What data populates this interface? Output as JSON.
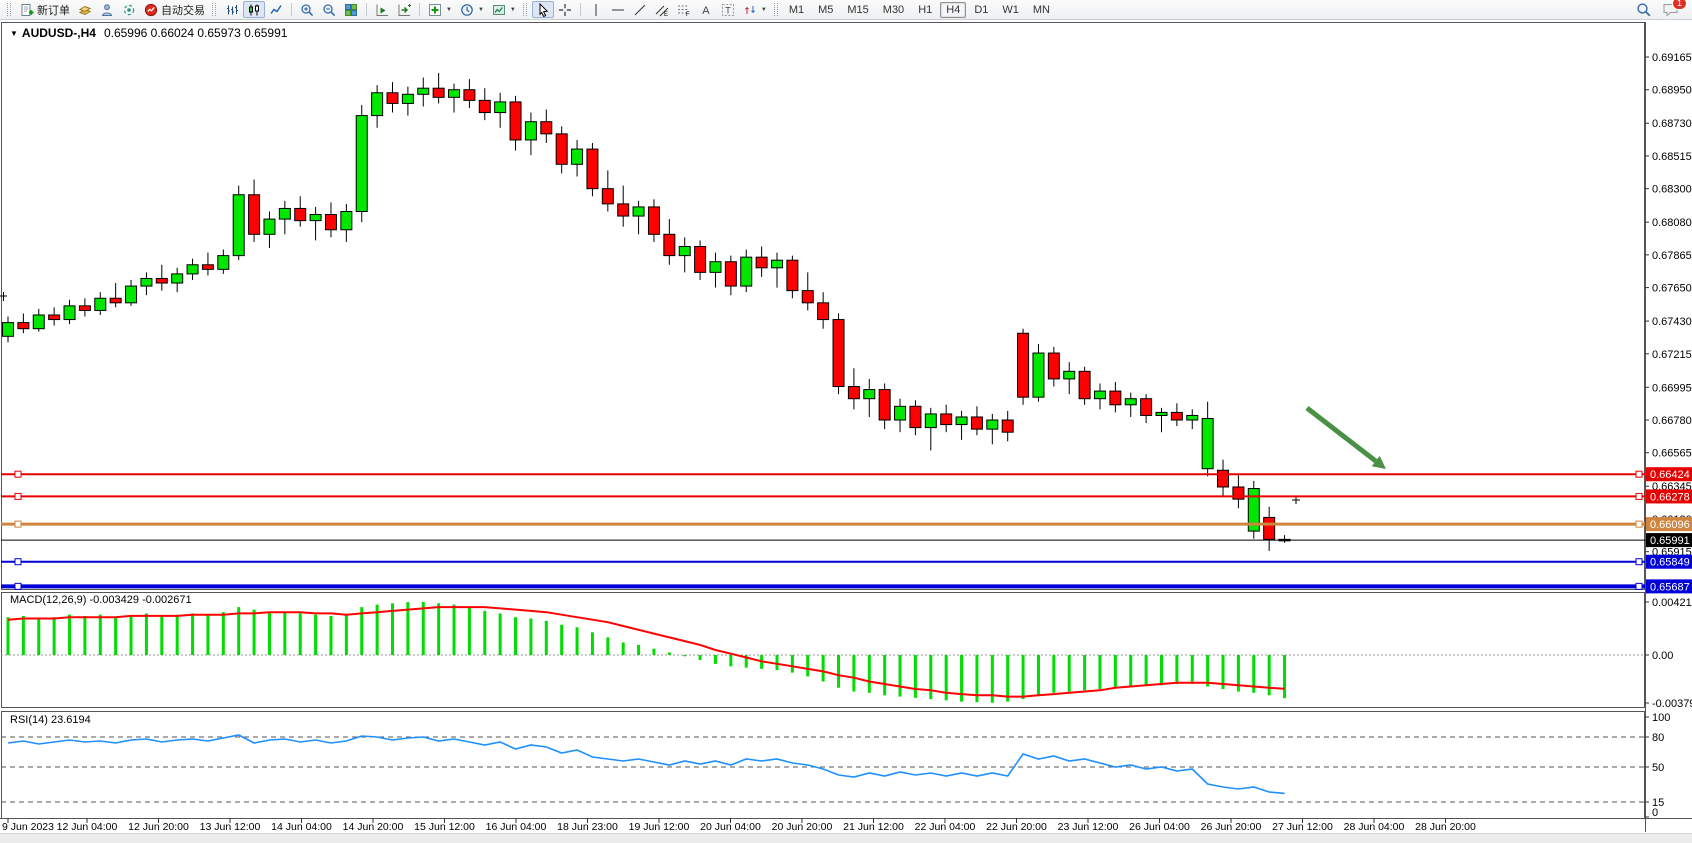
{
  "toolbar": {
    "new_order_label": "新订单",
    "autotrade_label": "自动交易",
    "timeframes": [
      "M1",
      "M5",
      "M15",
      "M30",
      "H1",
      "H4",
      "D1",
      "W1",
      "MN"
    ],
    "active_timeframe": "H4",
    "chat_badge": "1"
  },
  "chart": {
    "symbol_label": "AUDUSD-,H4",
    "ohlc": "0.65996 0.66024 0.65973 0.65991",
    "price_ticks": [
      "0.69165",
      "0.68950",
      "0.68730",
      "0.68515",
      "0.68300",
      "0.68080",
      "0.67865",
      "0.67650",
      "0.67430",
      "0.67215",
      "0.66995",
      "0.66780",
      "0.66565",
      "0.66345",
      "0.66130",
      "0.65915"
    ],
    "levels": [
      {
        "price": "0.66424",
        "color": "#e60000",
        "width": 2,
        "handles": true
      },
      {
        "price": "0.66278",
        "color": "#e60000",
        "width": 2,
        "handles": true
      },
      {
        "price": "0.66096",
        "color": "#cd853f",
        "width": 3,
        "handles": true
      },
      {
        "price": "0.65991",
        "color": "#000000",
        "width": 1,
        "handles": false
      },
      {
        "price": "0.65849",
        "color": "#0000d8",
        "width": 2,
        "handles": true
      },
      {
        "price": "0.65687",
        "color": "#0000d8",
        "width": 4,
        "handles": true
      }
    ],
    "time_labels": [
      "9 Jun 2023",
      "12 Jun 04:00",
      "12 Jun 20:00",
      "13 Jun 12:00",
      "14 Jun 04:00",
      "14 Jun 20:00",
      "15 Jun 12:00",
      "16 Jun 04:00",
      "18 Jun 23:00",
      "19 Jun 12:00",
      "20 Jun 04:00",
      "20 Jun 20:00",
      "21 Jun 12:00",
      "22 Jun 04:00",
      "22 Jun 20:00",
      "23 Jun 12:00",
      "26 Jun 04:00",
      "26 Jun 20:00",
      "27 Jun 12:00",
      "28 Jun 04:00",
      "28 Jun 20:00"
    ],
    "colors": {
      "bull": "#00e800",
      "bear": "#ff0000",
      "outline": "#000000",
      "macd_hist": "#00dd00",
      "macd_signal": "#ff0000",
      "rsi_line": "#1e90ff",
      "arrow": "#4a9146",
      "panel_border": "#555555"
    }
  },
  "chart_data": {
    "type": "candlestick",
    "symbol": "AUDUSD-",
    "timeframe": "H4",
    "current_bar": {
      "open": "0.65996",
      "high": "0.66024",
      "low": "0.65973",
      "close": "0.65991"
    },
    "candles": [
      [
        0.6733,
        0.6746,
        0.6729,
        0.6742
      ],
      [
        0.6742,
        0.6748,
        0.6735,
        0.6738
      ],
      [
        0.6738,
        0.6751,
        0.6736,
        0.6747
      ],
      [
        0.6747,
        0.6752,
        0.674,
        0.6744
      ],
      [
        0.6744,
        0.6757,
        0.6741,
        0.6753
      ],
      [
        0.6753,
        0.6758,
        0.6746,
        0.675
      ],
      [
        0.675,
        0.6762,
        0.6747,
        0.6758
      ],
      [
        0.6758,
        0.6768,
        0.6752,
        0.6755
      ],
      [
        0.6755,
        0.677,
        0.6753,
        0.6766
      ],
      [
        0.6766,
        0.6775,
        0.676,
        0.6771
      ],
      [
        0.6771,
        0.678,
        0.6763,
        0.6768
      ],
      [
        0.6768,
        0.6778,
        0.6762,
        0.6774
      ],
      [
        0.6774,
        0.6784,
        0.677,
        0.678
      ],
      [
        0.678,
        0.6788,
        0.6773,
        0.6777
      ],
      [
        0.6777,
        0.679,
        0.6774,
        0.6786
      ],
      [
        0.6786,
        0.6832,
        0.6783,
        0.6826
      ],
      [
        0.6826,
        0.6836,
        0.6795,
        0.68
      ],
      [
        0.68,
        0.6815,
        0.6791,
        0.681
      ],
      [
        0.681,
        0.6822,
        0.68,
        0.6817
      ],
      [
        0.6817,
        0.6825,
        0.6805,
        0.6809
      ],
      [
        0.6809,
        0.6818,
        0.6796,
        0.6813
      ],
      [
        0.6813,
        0.6821,
        0.6798,
        0.6803
      ],
      [
        0.6803,
        0.682,
        0.6795,
        0.6815
      ],
      [
        0.6815,
        0.6885,
        0.6808,
        0.6878
      ],
      [
        0.6878,
        0.6898,
        0.687,
        0.6893
      ],
      [
        0.6893,
        0.69,
        0.688,
        0.6886
      ],
      [
        0.6886,
        0.6897,
        0.6878,
        0.6892
      ],
      [
        0.6892,
        0.6903,
        0.6884,
        0.6896
      ],
      [
        0.6896,
        0.6906,
        0.6886,
        0.689
      ],
      [
        0.689,
        0.6899,
        0.688,
        0.6895
      ],
      [
        0.6895,
        0.6902,
        0.6883,
        0.6888
      ],
      [
        0.6888,
        0.6896,
        0.6875,
        0.688
      ],
      [
        0.688,
        0.6893,
        0.687,
        0.6887
      ],
      [
        0.6887,
        0.6891,
        0.6855,
        0.6862
      ],
      [
        0.6862,
        0.688,
        0.6852,
        0.6874
      ],
      [
        0.6874,
        0.6882,
        0.686,
        0.6866
      ],
      [
        0.6866,
        0.6871,
        0.684,
        0.6846
      ],
      [
        0.6846,
        0.6862,
        0.6838,
        0.6856
      ],
      [
        0.6856,
        0.686,
        0.6825,
        0.683
      ],
      [
        0.683,
        0.6842,
        0.6815,
        0.682
      ],
      [
        0.682,
        0.6832,
        0.6805,
        0.6812
      ],
      [
        0.6812,
        0.6822,
        0.68,
        0.6818
      ],
      [
        0.6818,
        0.6823,
        0.6795,
        0.68
      ],
      [
        0.68,
        0.681,
        0.678,
        0.6786
      ],
      [
        0.6786,
        0.6798,
        0.6775,
        0.6792
      ],
      [
        0.6792,
        0.6796,
        0.677,
        0.6775
      ],
      [
        0.6775,
        0.6788,
        0.6765,
        0.6782
      ],
      [
        0.6782,
        0.6786,
        0.676,
        0.6766
      ],
      [
        0.6766,
        0.679,
        0.6762,
        0.6785
      ],
      [
        0.6785,
        0.6792,
        0.6772,
        0.6778
      ],
      [
        0.6778,
        0.6788,
        0.6765,
        0.6783
      ],
      [
        0.6783,
        0.6786,
        0.6758,
        0.6763
      ],
      [
        0.6763,
        0.6775,
        0.675,
        0.6755
      ],
      [
        0.6755,
        0.6762,
        0.6738,
        0.6744
      ],
      [
        0.6744,
        0.6748,
        0.6695,
        0.67
      ],
      [
        0.67,
        0.6712,
        0.6685,
        0.6692
      ],
      [
        0.6692,
        0.6705,
        0.668,
        0.6698
      ],
      [
        0.6698,
        0.6702,
        0.6672,
        0.6678
      ],
      [
        0.6678,
        0.6692,
        0.667,
        0.6687
      ],
      [
        0.6687,
        0.6691,
        0.6668,
        0.6673
      ],
      [
        0.6673,
        0.6686,
        0.6658,
        0.6682
      ],
      [
        0.6682,
        0.6688,
        0.667,
        0.6675
      ],
      [
        0.6675,
        0.6684,
        0.6665,
        0.668
      ],
      [
        0.668,
        0.6687,
        0.6668,
        0.6672
      ],
      [
        0.6672,
        0.6682,
        0.6662,
        0.6678
      ],
      [
        0.6678,
        0.6684,
        0.6664,
        0.667
      ],
      [
        0.6735,
        0.6738,
        0.6688,
        0.6693
      ],
      [
        0.6693,
        0.6728,
        0.669,
        0.6722
      ],
      [
        0.6722,
        0.6726,
        0.67,
        0.6705
      ],
      [
        0.6705,
        0.6716,
        0.6695,
        0.671
      ],
      [
        0.671,
        0.6713,
        0.6688,
        0.6692
      ],
      [
        0.6692,
        0.6702,
        0.6685,
        0.6697
      ],
      [
        0.6697,
        0.6703,
        0.6683,
        0.6688
      ],
      [
        0.6688,
        0.6696,
        0.668,
        0.6692
      ],
      [
        0.6692,
        0.6695,
        0.6676,
        0.6681
      ],
      [
        0.6681,
        0.6686,
        0.667,
        0.6683
      ],
      [
        0.6683,
        0.6689,
        0.6674,
        0.6678
      ],
      [
        0.6678,
        0.6685,
        0.6672,
        0.6681
      ],
      [
        0.6646,
        0.669,
        0.6641,
        0.6679
      ],
      [
        0.6645,
        0.6652,
        0.6628,
        0.6634
      ],
      [
        0.6634,
        0.6642,
        0.662,
        0.6626
      ],
      [
        0.6605,
        0.6638,
        0.66,
        0.6633
      ],
      [
        0.6614,
        0.6621,
        0.6592,
        0.65996
      ],
      [
        0.65996,
        0.66024,
        0.65973,
        0.65991
      ]
    ],
    "macd": {
      "label": "MACD(12,26,9) -0.003429 -0.002671",
      "params": "12,26,9",
      "main_value": -0.003429,
      "signal_value": -0.002671,
      "axis_labels": [
        "0.004213",
        "0.00",
        "-0.003792"
      ],
      "hist": [
        0.003,
        0.0031,
        0.0029,
        0.003,
        0.0032,
        0.0031,
        0.0032,
        0.003,
        0.0031,
        0.0033,
        0.0031,
        0.0032,
        0.0033,
        0.0032,
        0.0034,
        0.0038,
        0.0036,
        0.0034,
        0.0034,
        0.0033,
        0.0032,
        0.0031,
        0.0032,
        0.0038,
        0.004,
        0.0041,
        0.0042,
        0.004213,
        0.0041,
        0.004,
        0.0038,
        0.0035,
        0.0033,
        0.003,
        0.0029,
        0.0027,
        0.0024,
        0.0022,
        0.0018,
        0.0014,
        0.001,
        0.0008,
        0.0005,
        0.0002,
        -0.0001,
        -0.0004,
        -0.0007,
        -0.0009,
        -0.001,
        -0.0011,
        -0.0012,
        -0.0014,
        -0.0017,
        -0.0021,
        -0.0026,
        -0.0029,
        -0.003,
        -0.0032,
        -0.0033,
        -0.0034,
        -0.0035,
        -0.0036,
        -0.0037,
        -0.00375,
        -0.003792,
        -0.0037,
        -0.0035,
        -0.0032,
        -0.003,
        -0.0029,
        -0.0028,
        -0.0027,
        -0.0026,
        -0.0025,
        -0.0024,
        -0.0024,
        -0.0023,
        -0.0023,
        -0.0025,
        -0.0027,
        -0.0029,
        -0.003,
        -0.0032,
        -0.003429
      ],
      "signal": [
        0.0028,
        0.0029,
        0.0029,
        0.0029,
        0.003,
        0.003,
        0.003,
        0.003,
        0.0031,
        0.0031,
        0.0031,
        0.0031,
        0.0032,
        0.0032,
        0.0032,
        0.0033,
        0.0033,
        0.0034,
        0.0034,
        0.0034,
        0.0033,
        0.0033,
        0.0032,
        0.0033,
        0.0034,
        0.0035,
        0.0036,
        0.0037,
        0.0038,
        0.0038,
        0.0038,
        0.0038,
        0.0037,
        0.0036,
        0.0035,
        0.0034,
        0.0032,
        0.003,
        0.0028,
        0.0026,
        0.0023,
        0.002,
        0.0017,
        0.0014,
        0.0011,
        0.0008,
        0.0004,
        0.0001,
        -0.0002,
        -0.0005,
        -0.0007,
        -0.0009,
        -0.0011,
        -0.0013,
        -0.0016,
        -0.0018,
        -0.0021,
        -0.0023,
        -0.0025,
        -0.0027,
        -0.0028,
        -0.003,
        -0.0031,
        -0.0032,
        -0.0032,
        -0.0033,
        -0.0033,
        -0.0032,
        -0.0031,
        -0.003,
        -0.0029,
        -0.0028,
        -0.0026,
        -0.0025,
        -0.0024,
        -0.0023,
        -0.0022,
        -0.0022,
        -0.0022,
        -0.0023,
        -0.0024,
        -0.0025,
        -0.0026,
        -0.002671
      ]
    },
    "rsi": {
      "label": "RSI(14) 23.6194",
      "period": 14,
      "value": 23.6194,
      "axis_labels": [
        "100",
        "80",
        "50",
        "15",
        "0"
      ],
      "dashed_levels": [
        80,
        50,
        15
      ],
      "series": [
        74,
        76,
        73,
        75,
        77,
        75,
        76,
        74,
        77,
        78,
        75,
        77,
        78,
        76,
        79,
        82,
        74,
        77,
        78,
        75,
        77,
        74,
        76,
        81,
        80,
        77,
        79,
        80,
        76,
        78,
        75,
        72,
        75,
        68,
        72,
        70,
        64,
        67,
        60,
        58,
        56,
        58,
        55,
        52,
        56,
        53,
        56,
        52,
        58,
        56,
        58,
        54,
        52,
        48,
        42,
        40,
        44,
        41,
        45,
        42,
        44,
        41,
        44,
        41,
        44,
        41,
        63,
        58,
        61,
        56,
        58,
        54,
        50,
        52,
        48,
        50,
        46,
        48,
        33,
        30,
        28,
        30,
        25,
        23.6194
      ]
    },
    "annotation_arrow": {
      "from": [
        1307,
        408
      ],
      "to": [
        1386,
        469
      ],
      "color": "#4a9146"
    }
  }
}
